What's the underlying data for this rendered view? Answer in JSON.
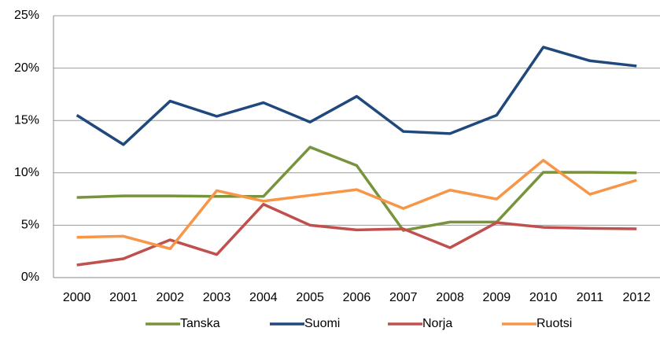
{
  "chart_data": {
    "type": "line",
    "categories": [
      "2000",
      "2001",
      "2002",
      "2003",
      "2004",
      "2005",
      "2006",
      "2007",
      "2008",
      "2009",
      "2010",
      "2011",
      "2012"
    ],
    "series": [
      {
        "name": "Tanska",
        "color": "#77933c",
        "values": [
          7.65,
          7.8,
          7.8,
          7.75,
          7.75,
          12.45,
          10.7,
          4.5,
          5.3,
          5.3,
          10.05,
          10.05,
          10.0
        ]
      },
      {
        "name": "Suomi",
        "color": "#1f497d",
        "values": [
          15.5,
          12.7,
          16.85,
          15.4,
          16.7,
          14.85,
          17.3,
          13.95,
          13.75,
          15.5,
          22.0,
          20.7,
          20.2
        ]
      },
      {
        "name": "Norja",
        "color": "#c0504d",
        "values": [
          1.2,
          1.8,
          3.6,
          2.2,
          7.0,
          5.0,
          4.55,
          4.65,
          2.85,
          5.25,
          4.8,
          4.7,
          4.65
        ]
      },
      {
        "name": "Ruotsi",
        "color": "#f79646",
        "values": [
          3.85,
          3.95,
          2.75,
          8.3,
          7.3,
          7.85,
          8.4,
          6.6,
          8.35,
          7.5,
          11.2,
          7.95,
          9.3
        ]
      }
    ],
    "ylim": [
      0,
      25
    ],
    "yticks": [
      {
        "value": 0,
        "label": "0%"
      },
      {
        "value": 5,
        "label": "5%"
      },
      {
        "value": 10,
        "label": "10%"
      },
      {
        "value": 15,
        "label": "15%"
      },
      {
        "value": 20,
        "label": "20%"
      },
      {
        "value": 25,
        "label": "25%"
      }
    ],
    "grid": true,
    "legend": "bottom"
  }
}
